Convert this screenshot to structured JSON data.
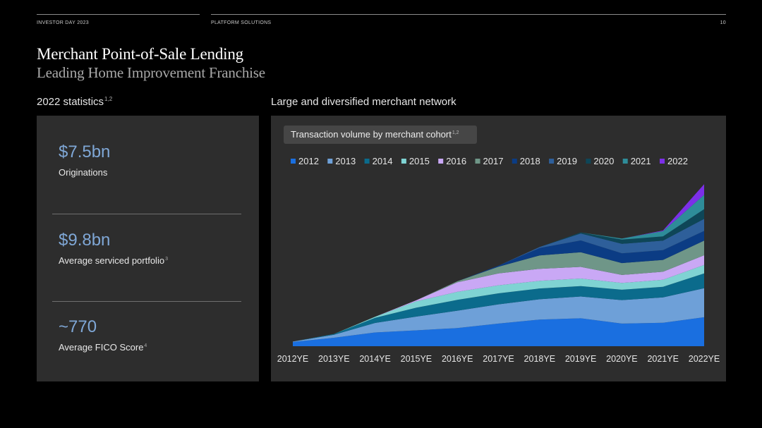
{
  "header": {
    "left": "INVESTOR DAY 2023",
    "center": "PLATFORM SOLUTIONS",
    "page_number": "10"
  },
  "title": "Merchant Point-of-Sale Lending",
  "subtitle": "Leading Home Improvement Franchise",
  "stats": {
    "label": "2022 statistics",
    "label_sup": "1,2",
    "items": [
      {
        "value": "$7.5bn",
        "label": "Originations",
        "sup": ""
      },
      {
        "value": "$9.8bn",
        "label": "Average serviced portfolio",
        "sup": "3"
      },
      {
        "value": "~770",
        "label": "Average FICO Score",
        "sup": "4"
      }
    ]
  },
  "network": {
    "label": "Large and diversified merchant network",
    "chart_title": "Transaction volume by merchant cohort",
    "chart_title_sup": "1,2"
  },
  "chart_data": {
    "type": "area",
    "stacked": true,
    "title": "Transaction volume by merchant cohort",
    "xlabel": "",
    "ylabel": "",
    "y_axis_shown": false,
    "grid": false,
    "legend_position": "top",
    "categories": [
      "2012YE",
      "2013YE",
      "2014YE",
      "2015YE",
      "2016YE",
      "2017YE",
      "2018YE",
      "2019YE",
      "2020YE",
      "2021YE",
      "2022YE"
    ],
    "series": [
      {
        "name": "2012",
        "color": "#1a6fe0",
        "values": [
          2.0,
          4.0,
          6.5,
          7.5,
          8.6,
          10.7,
          12.6,
          13.2,
          10.7,
          11.1,
          13.7
        ]
      },
      {
        "name": "2013",
        "color": "#6ea0d8",
        "values": [
          0.2,
          1.4,
          4.5,
          6.5,
          8.2,
          9.1,
          9.6,
          10.3,
          11.1,
          12.0,
          13.7
        ]
      },
      {
        "name": "2014",
        "color": "#0b6b8c",
        "values": [
          0,
          0.4,
          2.4,
          4.2,
          5.1,
          5.2,
          5.1,
          4.9,
          4.9,
          5.0,
          7.0
        ]
      },
      {
        "name": "2015",
        "color": "#7fd3d3",
        "values": [
          0,
          0,
          0.5,
          3.0,
          3.8,
          3.8,
          3.6,
          3.6,
          3.2,
          3.3,
          4.0
        ]
      },
      {
        "name": "2016",
        "color": "#c9a8f5",
        "values": [
          0,
          0,
          0,
          0.5,
          4.5,
          5.6,
          5.7,
          5.5,
          3.8,
          3.8,
          4.6
        ]
      },
      {
        "name": "2017",
        "color": "#6f9688",
        "values": [
          0,
          0,
          0,
          0,
          0.5,
          3.2,
          6.3,
          6.9,
          5.6,
          5.6,
          6.9
        ]
      },
      {
        "name": "2018",
        "color": "#0b3c84",
        "values": [
          0,
          0,
          0,
          0,
          0,
          0.5,
          3.5,
          5.6,
          4.6,
          4.6,
          4.6
        ]
      },
      {
        "name": "2019",
        "color": "#2e5f9a",
        "values": [
          0,
          0,
          0,
          0,
          0,
          0,
          0.5,
          3.3,
          4.5,
          4.5,
          5.7
        ]
      },
      {
        "name": "2020",
        "color": "#0e4658",
        "values": [
          0,
          0,
          0,
          0,
          0,
          0,
          0,
          0.5,
          2.0,
          2.0,
          4.6
        ]
      },
      {
        "name": "2021",
        "color": "#2e8c99",
        "values": [
          0,
          0,
          0,
          0,
          0,
          0,
          0,
          0,
          0.5,
          2.5,
          6.8
        ]
      },
      {
        "name": "2022",
        "color": "#7c2fe8",
        "values": [
          0,
          0,
          0,
          0,
          0,
          0,
          0,
          0,
          0,
          0.3,
          5.0
        ]
      }
    ]
  }
}
